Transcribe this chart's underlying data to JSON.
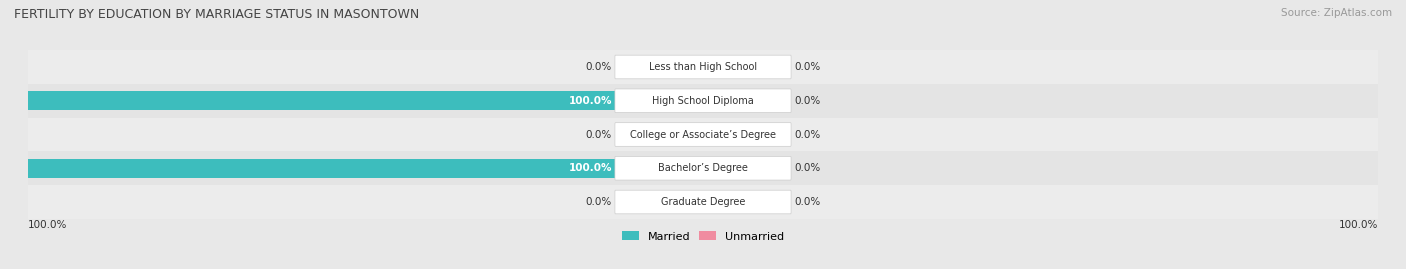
{
  "title": "FERTILITY BY EDUCATION BY MARRIAGE STATUS IN MASONTOWN",
  "source": "Source: ZipAtlas.com",
  "categories": [
    "Less than High School",
    "High School Diploma",
    "College or Associate’s Degree",
    "Bachelor’s Degree",
    "Graduate Degree"
  ],
  "married_values": [
    0.0,
    100.0,
    0.0,
    100.0,
    0.0
  ],
  "unmarried_values": [
    0.0,
    0.0,
    0.0,
    0.0,
    0.0
  ],
  "married_color": "#3dbdbd",
  "married_color_light": "#a8dede",
  "unmarried_color": "#f08ca0",
  "unmarried_color_light": "#f5bfca",
  "row_bg_even": "#ececec",
  "row_bg_odd": "#e4e4e4",
  "fig_bg": "#e8e8e8",
  "title_color": "#444444",
  "text_color": "#333333",
  "source_color": "#999999",
  "left_value_labels": [
    "0.0%",
    "100.0%",
    "0.0%",
    "100.0%",
    "0.0%"
  ],
  "right_value_labels": [
    "0.0%",
    "0.0%",
    "0.0%",
    "0.0%",
    "0.0%"
  ],
  "bottom_left_label": "100.0%",
  "bottom_right_label": "100.0%",
  "fig_width": 14.06,
  "fig_height": 2.69,
  "dpi": 100
}
